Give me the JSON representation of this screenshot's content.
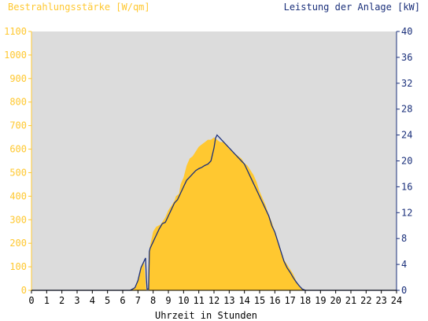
{
  "chart_data": {
    "type": "area",
    "title": "",
    "ylabel_left": "Bestrahlungsstärke [W/qm]",
    "ylabel_right": "Leistung der Anlage [kW]",
    "xlabel": "Uhrzeit in Stunden",
    "xlim": [
      0,
      24
    ],
    "ylim_left": [
      0,
      1100
    ],
    "ylim_right": [
      0,
      40
    ],
    "x_ticks": [
      0,
      1,
      2,
      3,
      4,
      5,
      6,
      7,
      8,
      9,
      10,
      11,
      12,
      13,
      14,
      15,
      16,
      17,
      18,
      19,
      20,
      21,
      22,
      23,
      24
    ],
    "y_ticks_left": [
      0,
      100,
      200,
      300,
      400,
      500,
      600,
      700,
      800,
      900,
      1000,
      1100
    ],
    "y_ticks_right": [
      0,
      4,
      8,
      12,
      16,
      20,
      24,
      28,
      32,
      36,
      40
    ],
    "colors": {
      "plot_background": "#dcdcdc",
      "irradiance_fill": "#ffc830",
      "power_line": "#1a2f7a",
      "left_axis_text": "#ffc830",
      "right_axis_text": "#1a2f7a"
    },
    "series": [
      {
        "name": "Bestrahlungsstärke [W/qm]",
        "axis": "left",
        "style": "area",
        "x": [
          0,
          6.5,
          6.8,
          7.0,
          7.2,
          7.4,
          7.5,
          7.55,
          7.6,
          7.7,
          7.75,
          7.8,
          7.9,
          8.0,
          8.2,
          8.5,
          8.8,
          9.0,
          9.2,
          9.4,
          9.5,
          9.7,
          9.8,
          10.0,
          10.2,
          10.4,
          10.6,
          10.8,
          11.0,
          11.2,
          11.4,
          11.6,
          11.8,
          12.0,
          12.2,
          12.4,
          12.6,
          12.8,
          13.0,
          13.2,
          13.4,
          13.6,
          13.8,
          14.0,
          14.2,
          14.4,
          14.6,
          14.8,
          15.0,
          15.2,
          15.4,
          15.6,
          15.8,
          16.0,
          16.2,
          16.4,
          16.6,
          16.8,
          17.0,
          17.2,
          17.4,
          17.6,
          17.8,
          18.0,
          18.2,
          18.4,
          24
        ],
        "values": [
          0,
          0,
          10,
          40,
          100,
          120,
          40,
          0,
          0,
          0,
          170,
          190,
          220,
          250,
          270,
          280,
          310,
          340,
          360,
          380,
          400,
          410,
          450,
          480,
          530,
          560,
          570,
          590,
          610,
          620,
          630,
          640,
          640,
          650,
          640,
          630,
          630,
          620,
          600,
          590,
          580,
          570,
          560,
          540,
          530,
          510,
          490,
          460,
          420,
          390,
          360,
          320,
          290,
          250,
          210,
          170,
          130,
          110,
          90,
          70,
          40,
          15,
          5,
          0,
          0,
          0,
          0
        ]
      },
      {
        "name": "Leistung der Anlage [kW]",
        "axis": "right",
        "style": "line",
        "x": [
          0,
          6.5,
          6.8,
          7.0,
          7.2,
          7.4,
          7.5,
          7.55,
          7.6,
          7.7,
          7.75,
          7.8,
          8.0,
          8.2,
          8.4,
          8.6,
          8.8,
          9.0,
          9.2,
          9.4,
          9.6,
          9.8,
          10.0,
          10.2,
          10.4,
          10.6,
          10.8,
          11.0,
          11.2,
          11.4,
          11.6,
          11.8,
          12.0,
          12.1,
          12.2,
          12.4,
          12.6,
          12.8,
          13.0,
          13.2,
          13.4,
          13.6,
          13.8,
          14.0,
          14.2,
          14.4,
          14.6,
          14.8,
          15.0,
          15.2,
          15.4,
          15.6,
          15.8,
          16.0,
          16.2,
          16.4,
          16.6,
          16.8,
          17.0,
          17.2,
          17.4,
          17.6,
          17.8,
          18.0,
          18.2,
          24
        ],
        "values": [
          0,
          0,
          0.4,
          1.5,
          3.5,
          4.5,
          5.0,
          2.0,
          0.2,
          0.2,
          6.0,
          6.5,
          7.5,
          8.5,
          9.5,
          10.3,
          10.5,
          11.5,
          12.5,
          13.5,
          14.0,
          15.0,
          16.0,
          17.0,
          17.5,
          18.0,
          18.5,
          18.8,
          19.0,
          19.3,
          19.5,
          20.0,
          22.0,
          23.5,
          24.0,
          23.5,
          23.0,
          22.5,
          22.0,
          21.5,
          21.0,
          20.5,
          20.0,
          19.5,
          18.5,
          17.5,
          16.5,
          15.5,
          14.5,
          13.5,
          12.5,
          11.5,
          10.0,
          9.0,
          7.5,
          6.0,
          4.5,
          3.5,
          2.8,
          2.0,
          1.3,
          0.7,
          0.2,
          0,
          0,
          0
        ]
      }
    ]
  }
}
